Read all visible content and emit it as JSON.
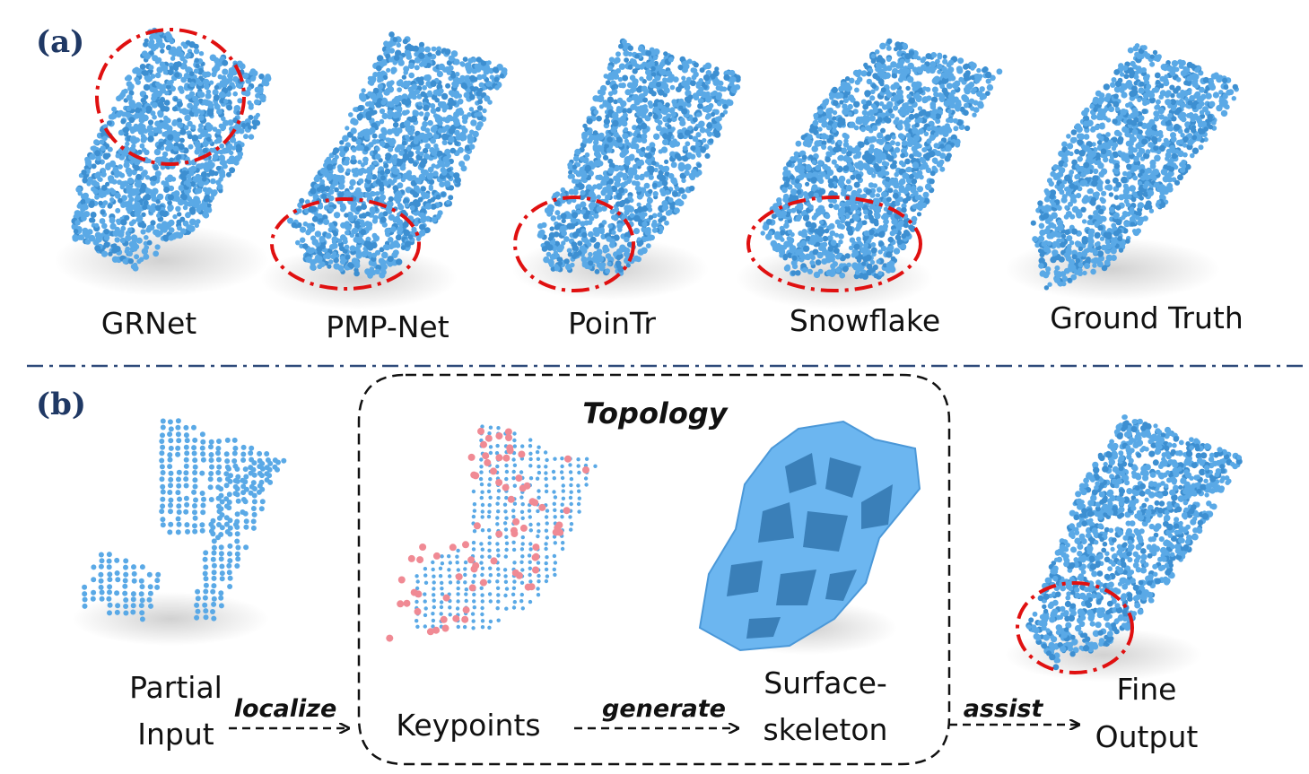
{
  "panel_a": {
    "label": "(a)",
    "methods": [
      {
        "name": "GRNet",
        "highlight": "upper-region"
      },
      {
        "name": "PMP-Net",
        "highlight": "front-tip"
      },
      {
        "name": "PoinTr",
        "highlight": "front-tip"
      },
      {
        "name": "Snowflake",
        "highlight": "front-tip"
      },
      {
        "name": "Ground Truth",
        "highlight": "none"
      }
    ]
  },
  "panel_b": {
    "label": "(b)",
    "partial_input": [
      "Partial",
      "Input"
    ],
    "localize": "localize",
    "topology_title": "Topology",
    "keypoints": "Keypoints",
    "generate": "generate",
    "surface_skeleton": [
      "Surface-",
      "skeleton"
    ],
    "assist": "assist",
    "fine_output": [
      "Fine",
      "Output"
    ]
  },
  "colors": {
    "point": "#5aa9e6",
    "point_dark": "#3d8fd1",
    "keypoint": "#f08a94",
    "highlight": "#e01010",
    "divider": "#2e4a7a",
    "panel_label": "#1f3864"
  }
}
